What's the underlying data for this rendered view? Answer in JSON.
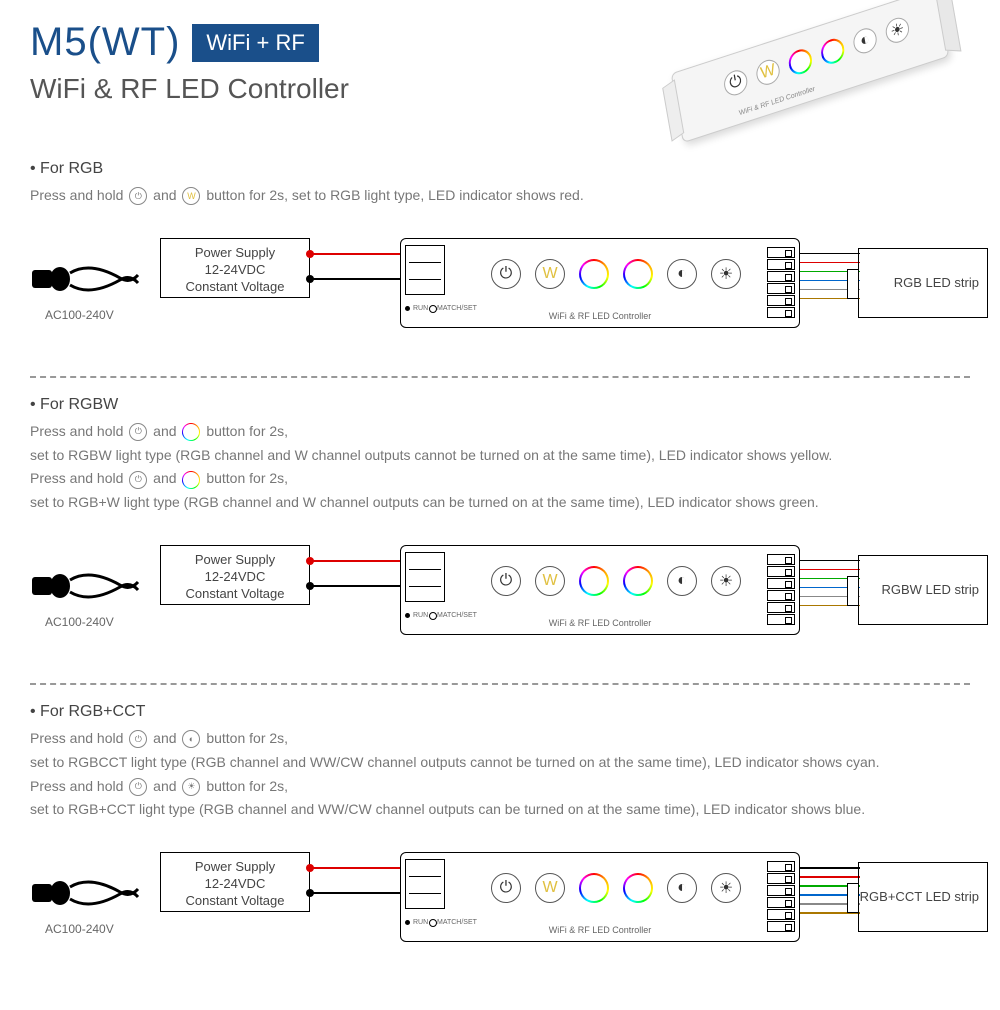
{
  "header": {
    "model": "M5(WT)",
    "badge": "WiFi + RF",
    "subtitle": "WiFi & RF LED Controller"
  },
  "common": {
    "psu_line1": "Power Supply",
    "psu_line2": "12-24VDC",
    "psu_line3": "Constant Voltage",
    "ac_label": "AC100-240V",
    "ctrl_label": "WiFi & RF LED Controller",
    "run": "RUN",
    "match": "MATCH/SET",
    "colors": {
      "title_blue": "#1a4f8a",
      "wire_red": "#d00000",
      "wire_black": "#000000",
      "out_wires": [
        "#000",
        "#d00",
        "#0a0",
        "#06c",
        "#888",
        "#a70"
      ]
    }
  },
  "sections": [
    {
      "title": "• For RGB",
      "lines": [
        "Press and hold {power} and {w} button for 2s, set to RGB light type, LED indicator shows red."
      ],
      "strip_label": "RGB LED strip"
    },
    {
      "title": "• For RGBW",
      "lines": [
        "Press and hold {power} and {rgb} button for 2s,",
        "set to RGBW light type (RGB channel and W channel outputs cannot be turned on at the same time), LED indicator shows yellow.",
        "Press and hold {power} and {rgb2} button for 2s,",
        "set to RGB+W light type (RGB channel and W channel outputs can be turned on at the same time), LED indicator shows green."
      ],
      "strip_label": "RGBW LED strip"
    },
    {
      "title": "• For RGB+CCT",
      "lines": [
        "Press and hold {power} and {cct} button for 2s,",
        "set to RGBCCT light type (RGB channel and WW/CW channel outputs cannot be turned on at the same time), LED indicator shows cyan.",
        "Press and hold {power} and {bright} button for 2s,",
        "set to RGB+CCT light type (RGB channel and WW/CW channel outputs can be turned on at the same time), LED indicator shows blue."
      ],
      "strip_label": "RGB+CCT LED strip"
    }
  ]
}
